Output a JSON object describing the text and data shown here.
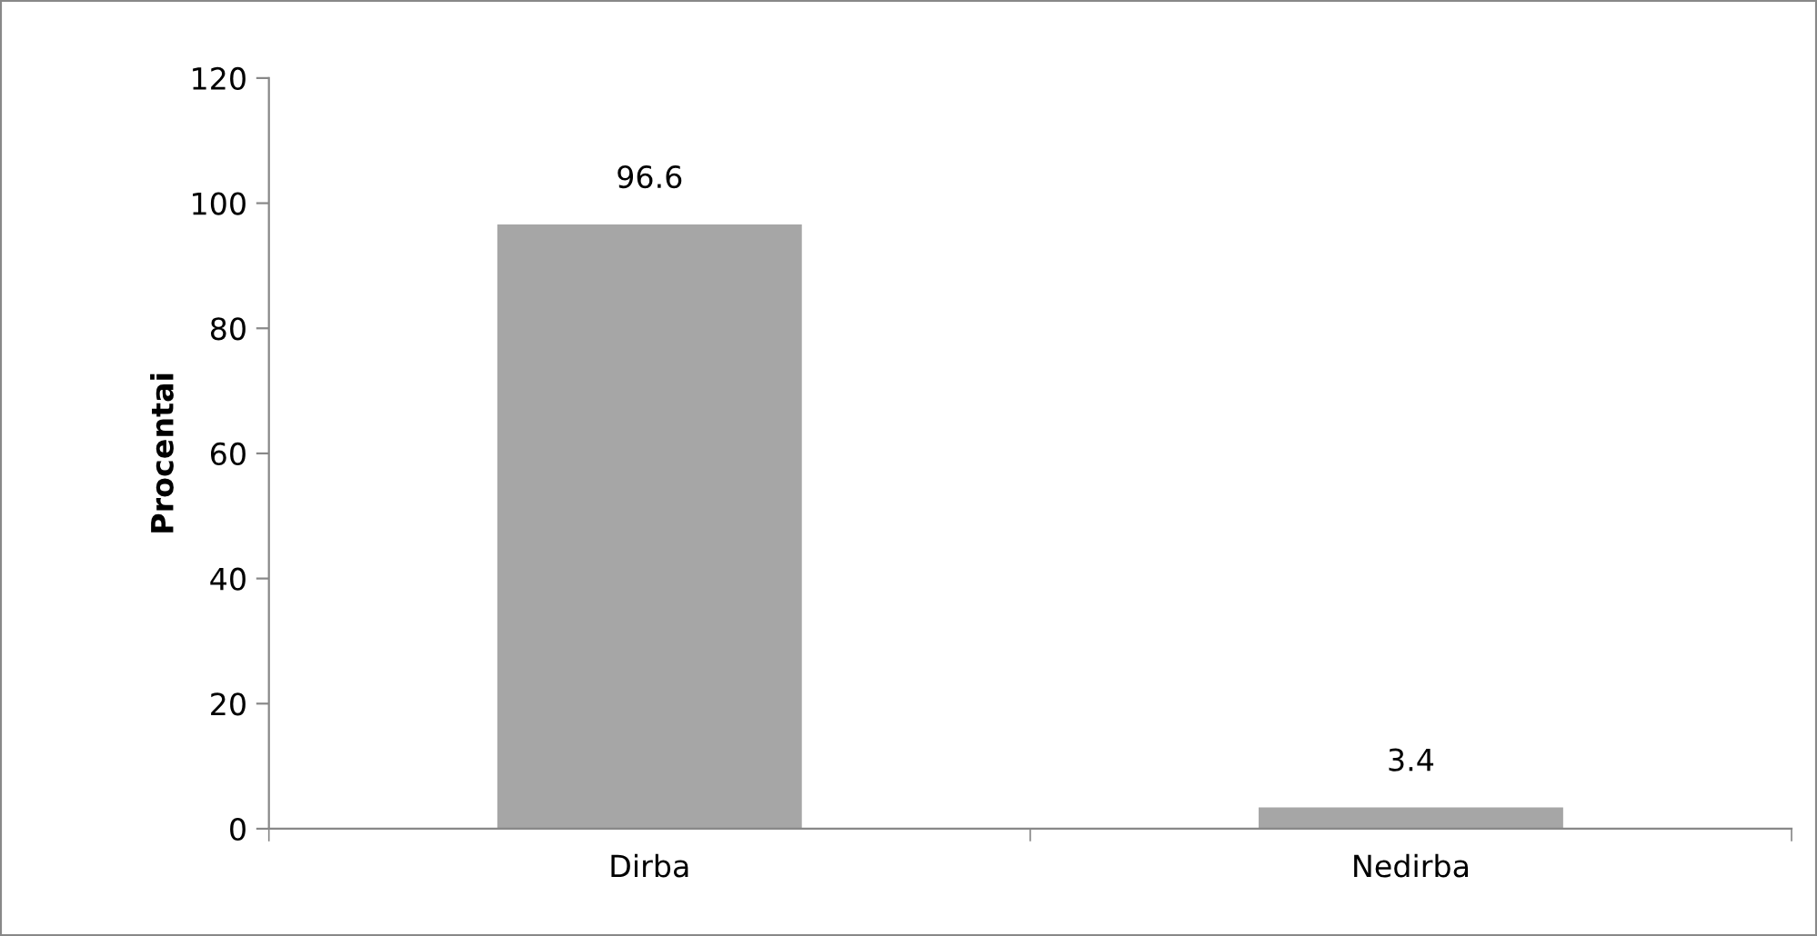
{
  "chart_data": {
    "type": "bar",
    "ylabel": "Procentai",
    "categories": [
      "Dirba",
      "Nedirba"
    ],
    "values": [
      96.6,
      3.4
    ],
    "color": "#a6a6a6",
    "ylim": [
      0,
      120
    ],
    "yticks": [
      0,
      20,
      40,
      60,
      80,
      100,
      120
    ],
    "data_labels": true,
    "grid": false,
    "legend": false
  }
}
